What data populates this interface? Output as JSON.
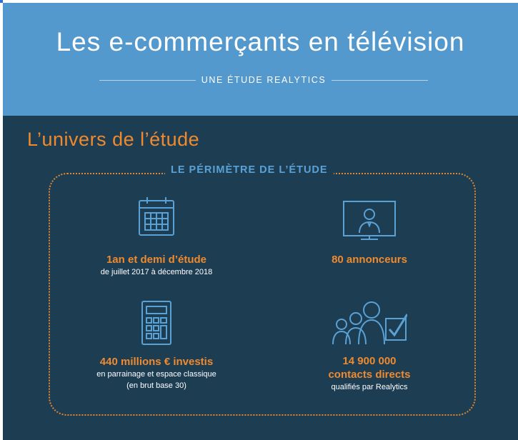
{
  "header": {
    "title": "Les e-commerçants en télévision",
    "subtitle": "UNE ÉTUDE REALYTICS"
  },
  "section": {
    "title": "L’univers de l’étude",
    "box_label": "LE PÉRIMÈTRE DE L’ÉTUDE"
  },
  "stats": [
    {
      "icon": "calendar-icon",
      "headline": "1an et demi d’étude",
      "detail": [
        "de juillet 2017 à décembre 2018"
      ]
    },
    {
      "icon": "tv-presenter-icon",
      "headline": "80 annonceurs",
      "detail": []
    },
    {
      "icon": "calculator-icon",
      "headline": "440 millions € investis",
      "detail": [
        "en parrainage et espace classique",
        "(en brut base 30)"
      ]
    },
    {
      "icon": "people-check-icon",
      "headline": "14 900 000",
      "headline2": "contacts directs",
      "detail": [
        "qualifiés par Realytics"
      ]
    }
  ],
  "colors": {
    "header_bg": "#5499cd",
    "main_bg": "#1d3d53",
    "accent_orange": "#ef8a2e",
    "accent_blue": "#5aa2d6"
  }
}
